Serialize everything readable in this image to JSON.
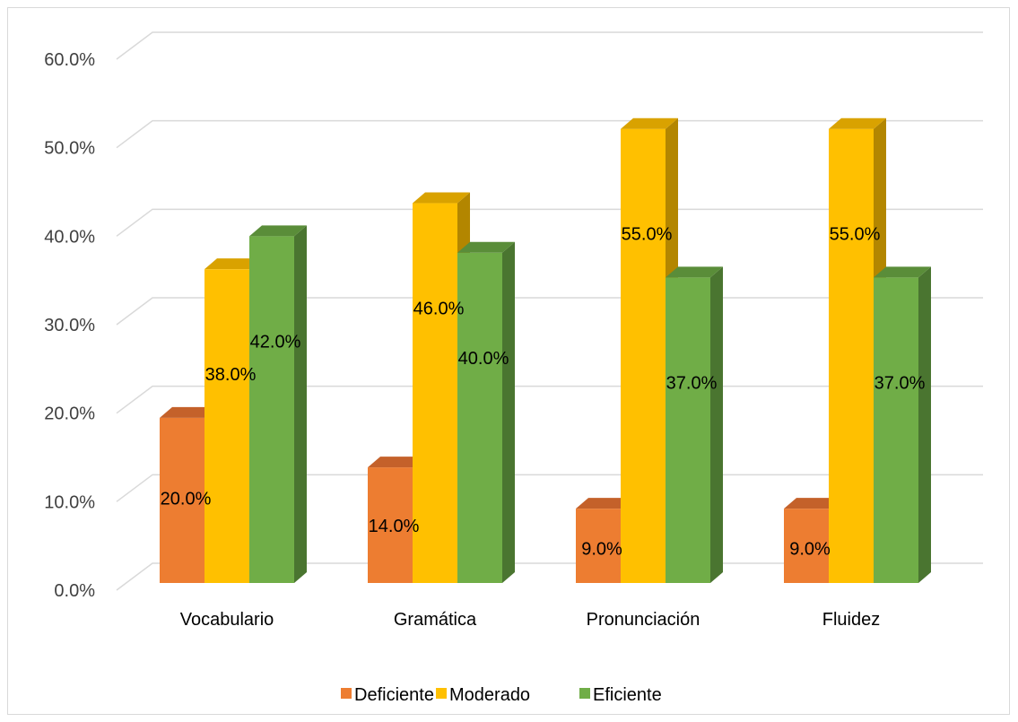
{
  "chart_data": {
    "type": "bar",
    "categories": [
      "Vocabulario",
      "Gramática",
      "Pronunciación",
      "Fluidez"
    ],
    "series": [
      {
        "name": "Deficiente",
        "values": [
          20.0,
          14.0,
          9.0,
          9.0
        ],
        "labels": [
          "20.0%",
          "14.0%",
          "9.0%",
          "9.0%"
        ]
      },
      {
        "name": "Moderado",
        "values": [
          38.0,
          46.0,
          55.0,
          55.0
        ],
        "labels": [
          "38.0%",
          "46.0%",
          "55.0%",
          "55.0%"
        ]
      },
      {
        "name": "Eficiente",
        "values": [
          42.0,
          40.0,
          37.0,
          37.0
        ],
        "labels": [
          "42.0%",
          "40.0%",
          "37.0%",
          "37.0%"
        ]
      }
    ],
    "y_ticks": [
      "0.0%",
      "10.0%",
      "20.0%",
      "30.0%",
      "40.0%",
      "50.0%",
      "60.0%"
    ],
    "ylim": [
      0,
      60
    ],
    "grid": true,
    "legend_position": "bottom",
    "style": "3d-clustered-column"
  },
  "colors": {
    "Deficiente": {
      "front": "#ED7D31",
      "side": "#B35A1F",
      "top": "#C4612A"
    },
    "Moderado": {
      "front": "#FFC000",
      "side": "#B38600",
      "top": "#D9A200"
    },
    "Eficiente": {
      "front": "#70AD47",
      "side": "#4A7530",
      "top": "#5A8D39"
    },
    "grid": "#d9d9d9",
    "axis_text": "#404040"
  }
}
